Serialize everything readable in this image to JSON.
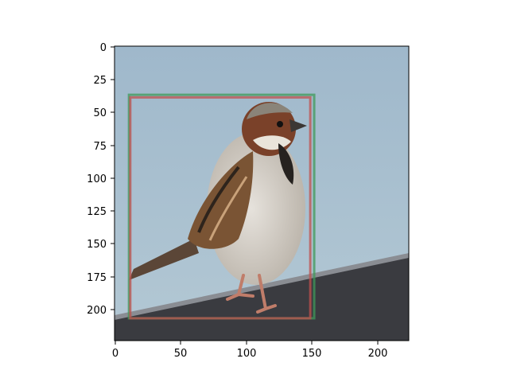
{
  "figure": {
    "x_ticks": [
      "0",
      "50",
      "100",
      "150",
      "200"
    ],
    "y_ticks": [
      "0",
      "25",
      "50",
      "75",
      "100",
      "125",
      "150",
      "175",
      "200"
    ],
    "image_extent": {
      "x": [
        0,
        224
      ],
      "y": [
        224,
        0
      ]
    }
  },
  "image": {
    "subject": "house-sparrow",
    "sky_color": "#a7bfcf",
    "roof_color": "#3a3b40"
  },
  "boxes": [
    {
      "name": "ground-truth-box",
      "color": "#3f9a5a",
      "x0": 11,
      "y0": 37,
      "x1": 152,
      "y1": 207
    },
    {
      "name": "predicted-box",
      "color": "#c0504d",
      "x0": 12,
      "y0": 39,
      "x1": 149,
      "y1": 207
    }
  ]
}
